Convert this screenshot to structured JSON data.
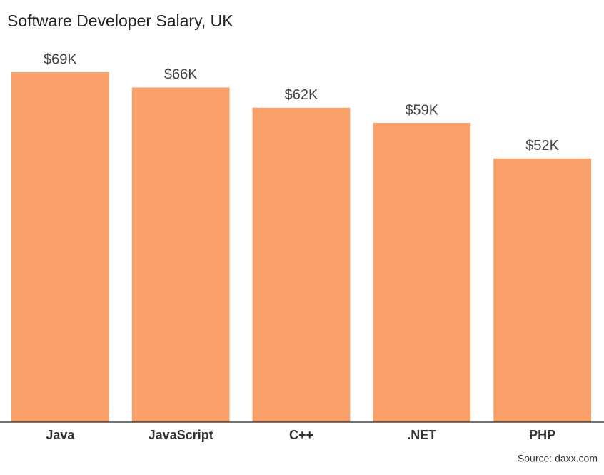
{
  "chart_data": {
    "type": "bar",
    "title": "Software Developer Salary, UK",
    "categories": [
      "Java",
      "JavaScript",
      "C++",
      ".NET",
      "PHP"
    ],
    "values": [
      69,
      66,
      62,
      59,
      52
    ],
    "value_labels": [
      "$69K",
      "$66K",
      "$62K",
      "$59K",
      "$52K"
    ],
    "color": "#f99f6a",
    "ylim": [
      0,
      80
    ],
    "source": "Source: daxx.com"
  }
}
